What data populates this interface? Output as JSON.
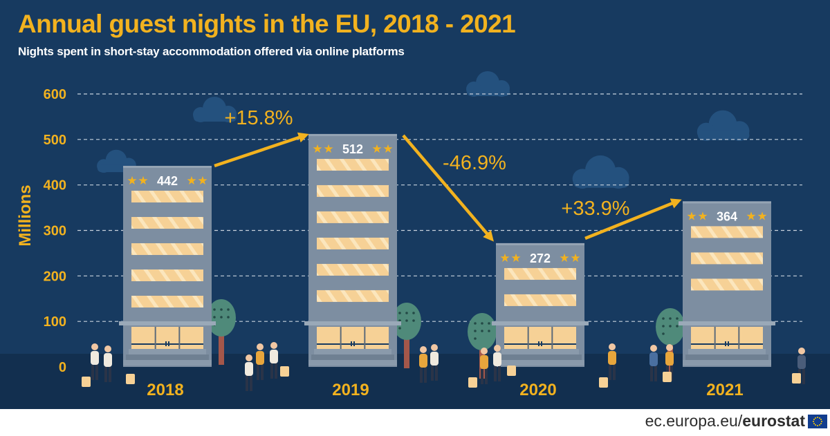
{
  "title": "Annual guest nights in the EU, 2018 - 2021",
  "subtitle": "Nights spent in short-stay accommodation offered via online platforms",
  "footer": {
    "site": "ec.europa.eu/",
    "brand": "eurostat"
  },
  "colors": {
    "background": "#173a60",
    "title": "#f2b21f",
    "building": "#7d8ea1",
    "window": "#f6d196",
    "arrow": "#f2b21f",
    "star": "#f2b21f",
    "tree": "#4f8a7a"
  },
  "chart_data": {
    "type": "bar",
    "categories": [
      "2018",
      "2019",
      "2020",
      "2021"
    ],
    "values": [
      442,
      512,
      272,
      364
    ],
    "value_labels": [
      "442",
      "512",
      "272",
      "364"
    ],
    "ylabel": "Millions",
    "ylim": [
      0,
      600
    ],
    "yticks": [
      0,
      100,
      200,
      300,
      400,
      500,
      600
    ],
    "grid": true,
    "legend": "none",
    "annotations": [
      {
        "text": "+15.8%",
        "from": "2018",
        "to": "2019"
      },
      {
        "text": "-46.9%",
        "from": "2019",
        "to": "2020"
      },
      {
        "text": "+33.9%",
        "from": "2020",
        "to": "2021"
      }
    ]
  }
}
